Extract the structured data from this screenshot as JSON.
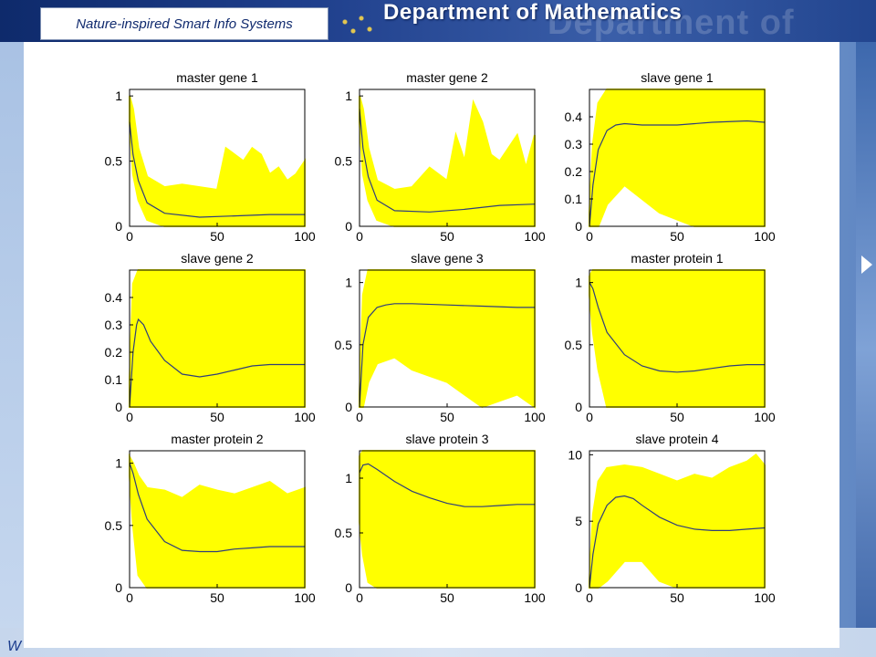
{
  "header": {
    "brand_text": "Nature-inspired Smart Info Systems",
    "department": "Department of Mathematics",
    "department_ghost": "Department of Mathematics"
  },
  "footer": {
    "text": "W"
  },
  "colors": {
    "envelope": "#ffff00",
    "mean_line": "#2f3e7a",
    "axes": "#000000"
  },
  "chart_data": [
    {
      "type": "line",
      "title": "master gene 1",
      "xlim": [
        0,
        100
      ],
      "ylim": [
        0,
        1.05
      ],
      "xticks": [
        0,
        50,
        100
      ],
      "yticks": [
        0,
        0.5,
        1
      ],
      "series": [
        {
          "kind": "mean",
          "x": [
            0,
            2,
            5,
            10,
            20,
            40,
            60,
            80,
            100
          ],
          "y": [
            0.8,
            0.55,
            0.35,
            0.18,
            0.1,
            0.07,
            0.08,
            0.09,
            0.09
          ]
        },
        {
          "kind": "envelope",
          "x": [
            0,
            2,
            5,
            10,
            20,
            30,
            50,
            55,
            60,
            65,
            70,
            75,
            80,
            85,
            90,
            95,
            100
          ],
          "upper": [
            1.0,
            0.9,
            0.6,
            0.38,
            0.3,
            0.32,
            0.28,
            0.6,
            0.55,
            0.5,
            0.6,
            0.55,
            0.4,
            0.45,
            0.35,
            0.4,
            0.5
          ],
          "lower": [
            0.8,
            0.4,
            0.2,
            0.05,
            0,
            0,
            0,
            0,
            0,
            0,
            0,
            0,
            0,
            0,
            0,
            0,
            0
          ]
        }
      ]
    },
    {
      "type": "line",
      "title": "master gene 2",
      "xlim": [
        0,
        100
      ],
      "ylim": [
        0,
        1.05
      ],
      "xticks": [
        0,
        50,
        100
      ],
      "yticks": [
        0,
        0.5,
        1
      ],
      "series": [
        {
          "kind": "mean",
          "x": [
            0,
            2,
            5,
            10,
            20,
            40,
            60,
            80,
            100
          ],
          "y": [
            0.9,
            0.6,
            0.38,
            0.2,
            0.12,
            0.11,
            0.13,
            0.16,
            0.17
          ]
        },
        {
          "kind": "envelope",
          "x": [
            0,
            2,
            5,
            10,
            20,
            30,
            40,
            50,
            55,
            60,
            65,
            70,
            75,
            80,
            85,
            90,
            95,
            100
          ],
          "upper": [
            1.0,
            0.9,
            0.6,
            0.35,
            0.28,
            0.3,
            0.45,
            0.35,
            0.7,
            0.5,
            0.95,
            0.8,
            0.55,
            0.5,
            0.6,
            0.7,
            0.45,
            0.7
          ],
          "lower": [
            0.8,
            0.4,
            0.2,
            0.05,
            0,
            0,
            0,
            0,
            0,
            0,
            0,
            0,
            0,
            0,
            0,
            0,
            0,
            0
          ]
        }
      ]
    },
    {
      "type": "line",
      "title": "slave gene 1",
      "xlim": [
        0,
        100
      ],
      "ylim": [
        0,
        0.5
      ],
      "xticks": [
        0,
        50,
        100
      ],
      "yticks": [
        0,
        0.1,
        0.2,
        0.3,
        0.4
      ],
      "series": [
        {
          "kind": "mean",
          "x": [
            0,
            2,
            5,
            10,
            15,
            20,
            30,
            50,
            70,
            90,
            100
          ],
          "y": [
            0,
            0.15,
            0.28,
            0.35,
            0.37,
            0.375,
            0.37,
            0.37,
            0.38,
            0.385,
            0.38
          ]
        },
        {
          "kind": "envelope",
          "x": [
            0,
            2,
            5,
            10,
            20,
            40,
            60,
            80,
            100
          ],
          "upper": [
            0.05,
            0.3,
            0.45,
            0.5,
            0.5,
            0.5,
            0.5,
            0.5,
            0.5
          ],
          "lower": [
            0,
            0,
            0,
            0.08,
            0.15,
            0.05,
            0,
            0,
            0
          ]
        }
      ]
    },
    {
      "type": "line",
      "title": "slave gene 2",
      "xlim": [
        0,
        100
      ],
      "ylim": [
        0,
        0.5
      ],
      "xticks": [
        0,
        50,
        100
      ],
      "yticks": [
        0,
        0.1,
        0.2,
        0.3,
        0.4
      ],
      "series": [
        {
          "kind": "mean",
          "x": [
            0,
            2,
            4,
            5,
            8,
            12,
            20,
            30,
            40,
            50,
            60,
            70,
            80,
            90,
            100
          ],
          "y": [
            0,
            0.2,
            0.3,
            0.32,
            0.3,
            0.24,
            0.17,
            0.12,
            0.11,
            0.12,
            0.135,
            0.15,
            0.155,
            0.155,
            0.155
          ]
        },
        {
          "kind": "envelope",
          "x": [
            0,
            2,
            5,
            10,
            20,
            40,
            60,
            80,
            100
          ],
          "upper": [
            0.1,
            0.45,
            0.5,
            0.5,
            0.5,
            0.5,
            0.5,
            0.5,
            0.5
          ],
          "lower": [
            0,
            0,
            0,
            0,
            0,
            0,
            0,
            0,
            0
          ]
        }
      ]
    },
    {
      "type": "line",
      "title": "slave gene 3",
      "xlim": [
        0,
        100
      ],
      "ylim": [
        0,
        1.1
      ],
      "xticks": [
        0,
        50,
        100
      ],
      "yticks": [
        0,
        0.5,
        1
      ],
      "series": [
        {
          "kind": "mean",
          "x": [
            0,
            2,
            5,
            10,
            15,
            20,
            30,
            50,
            70,
            90,
            100
          ],
          "y": [
            0,
            0.5,
            0.72,
            0.8,
            0.82,
            0.83,
            0.83,
            0.82,
            0.81,
            0.8,
            0.8
          ]
        },
        {
          "kind": "envelope",
          "x": [
            0,
            2,
            5,
            10,
            20,
            30,
            40,
            50,
            60,
            70,
            80,
            90,
            100
          ],
          "upper": [
            0.1,
            0.9,
            1.1,
            1.1,
            1.1,
            1.1,
            1.1,
            1.1,
            1.1,
            1.1,
            1.1,
            1.1,
            1.1
          ],
          "lower": [
            0,
            0,
            0.2,
            0.35,
            0.4,
            0.3,
            0.25,
            0.2,
            0.1,
            0,
            0.05,
            0.1,
            0
          ]
        }
      ]
    },
    {
      "type": "line",
      "title": "master protein 1",
      "xlim": [
        0,
        100
      ],
      "ylim": [
        0,
        1.1
      ],
      "xticks": [
        0,
        50,
        100
      ],
      "yticks": [
        0,
        0.5,
        1
      ],
      "series": [
        {
          "kind": "mean",
          "x": [
            0,
            2,
            5,
            10,
            20,
            30,
            40,
            50,
            60,
            70,
            80,
            90,
            100
          ],
          "y": [
            1.0,
            0.95,
            0.8,
            0.6,
            0.42,
            0.33,
            0.29,
            0.28,
            0.29,
            0.31,
            0.33,
            0.34,
            0.34
          ]
        },
        {
          "kind": "envelope",
          "x": [
            0,
            2,
            5,
            10,
            20,
            40,
            60,
            80,
            100
          ],
          "upper": [
            1.05,
            1.1,
            1.1,
            1.1,
            1.1,
            1.1,
            1.1,
            1.1,
            1.1
          ],
          "lower": [
            0.9,
            0.6,
            0.3,
            0,
            0,
            0,
            0,
            0,
            0
          ]
        }
      ]
    },
    {
      "type": "line",
      "title": "master protein 2",
      "xlim": [
        0,
        100
      ],
      "ylim": [
        0,
        1.1
      ],
      "xticks": [
        0,
        50,
        100
      ],
      "yticks": [
        0,
        0.5,
        1
      ],
      "series": [
        {
          "kind": "mean",
          "x": [
            0,
            2,
            5,
            10,
            20,
            30,
            40,
            50,
            60,
            70,
            80,
            90,
            100
          ],
          "y": [
            1.0,
            0.92,
            0.75,
            0.55,
            0.37,
            0.3,
            0.29,
            0.29,
            0.31,
            0.32,
            0.33,
            0.33,
            0.33
          ]
        },
        {
          "kind": "envelope",
          "x": [
            0,
            2,
            5,
            10,
            20,
            30,
            40,
            50,
            60,
            70,
            80,
            90,
            100
          ],
          "upper": [
            1.05,
            1.0,
            0.9,
            0.8,
            0.78,
            0.72,
            0.82,
            0.78,
            0.75,
            0.8,
            0.85,
            0.75,
            0.8
          ],
          "lower": [
            0.9,
            0.5,
            0.1,
            0,
            0,
            0,
            0,
            0,
            0,
            0,
            0,
            0,
            0
          ]
        }
      ]
    },
    {
      "type": "line",
      "title": "slave protein 3",
      "xlim": [
        0,
        100
      ],
      "ylim": [
        0,
        1.25
      ],
      "xticks": [
        0,
        50,
        100
      ],
      "yticks": [
        0,
        0.5,
        1
      ],
      "series": [
        {
          "kind": "mean",
          "x": [
            0,
            2,
            5,
            10,
            20,
            30,
            40,
            50,
            60,
            70,
            80,
            90,
            100
          ],
          "y": [
            1.05,
            1.12,
            1.13,
            1.08,
            0.97,
            0.88,
            0.82,
            0.77,
            0.74,
            0.74,
            0.75,
            0.76,
            0.76
          ]
        },
        {
          "kind": "envelope",
          "x": [
            0,
            2,
            5,
            10,
            20,
            40,
            60,
            80,
            100
          ],
          "upper": [
            1.2,
            1.25,
            1.25,
            1.25,
            1.25,
            1.25,
            1.25,
            1.25,
            1.25
          ],
          "lower": [
            0.6,
            0.3,
            0.05,
            0,
            0,
            0,
            0,
            0,
            0
          ]
        }
      ]
    },
    {
      "type": "line",
      "title": "slave protein 4",
      "xlim": [
        0,
        100
      ],
      "ylim": [
        0,
        10.3
      ],
      "xticks": [
        0,
        50,
        100
      ],
      "yticks": [
        0,
        5,
        10
      ],
      "series": [
        {
          "kind": "mean",
          "x": [
            0,
            2,
            5,
            10,
            15,
            20,
            25,
            30,
            40,
            50,
            60,
            70,
            80,
            90,
            100
          ],
          "y": [
            0,
            2.5,
            4.8,
            6.2,
            6.8,
            6.9,
            6.7,
            6.2,
            5.3,
            4.7,
            4.4,
            4.3,
            4.3,
            4.4,
            4.5
          ]
        },
        {
          "kind": "envelope",
          "x": [
            0,
            2,
            5,
            10,
            20,
            30,
            40,
            50,
            60,
            70,
            80,
            90,
            95,
            100
          ],
          "upper": [
            0.5,
            5.5,
            8,
            9,
            9.2,
            9,
            8.5,
            8,
            8.5,
            8.2,
            9,
            9.5,
            10,
            9.2
          ],
          "lower": [
            0,
            0,
            0,
            0.5,
            2,
            2,
            0.5,
            0,
            0,
            0,
            0,
            0,
            0,
            0
          ]
        }
      ]
    }
  ]
}
